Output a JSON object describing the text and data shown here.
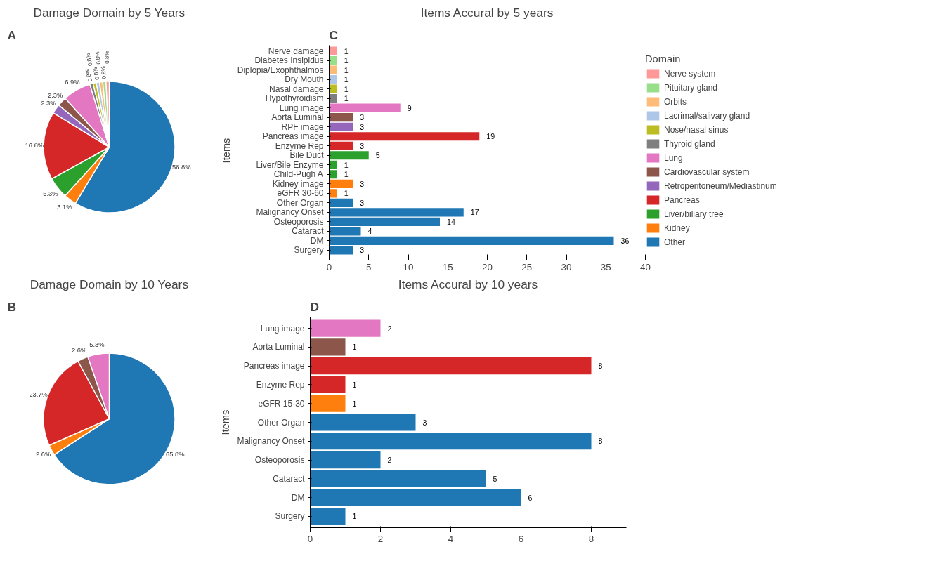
{
  "chart_data": [
    {
      "type": "pie",
      "title": "Damage Domain by 5 Years",
      "annotations": [
        "A"
      ],
      "categories": [
        null,
        null,
        null,
        null,
        null,
        null,
        null,
        null,
        null,
        null,
        null,
        null,
        null
      ],
      "values": [
        58.8,
        3.1,
        5.3,
        16.8,
        2.3,
        2.3,
        6.9,
        0.8,
        0.8,
        0.8,
        0.8,
        0.8,
        0.8
      ],
      "value_labels": [
        "58.8%",
        "3.1%",
        "5.3%",
        "16.8%",
        "2.3%",
        "2.3%",
        "6.9%",
        "0.8%",
        "0.8%",
        "0.8%",
        "0.8%",
        "0.8%",
        "0.8%"
      ],
      "colors": [
        "#1f77b4",
        "#ff7f0e",
        "#2ca02c",
        "#d62728",
        "#9467bd",
        "#8c564b",
        "#e377c2",
        "#7f7f7f",
        "#bcbd22",
        "#aec7e8",
        "#ffbb78",
        "#98df8a",
        "#ff9896"
      ]
    },
    {
      "type": "bar",
      "orientation": "horizontal",
      "stacked": true,
      "title": "Items Accural by 5 years",
      "annotations": [
        "C"
      ],
      "ylabel": "Items",
      "legend_title": "Domain",
      "legend": "right",
      "data_labels": true,
      "categories": [
        "Nerve damage",
        "Diabetes Insipidus",
        "Diplopia/Exophthalmos",
        "Dry Mouth",
        "Nasal damage",
        "Hypothyroidism",
        "Lung image",
        "Aorta Luminal",
        "RPF image",
        "Pancreas image",
        "Enzyme Rep",
        "Bile Duct",
        "Liver/Bile Enzyme",
        "Child-Pugh A",
        "Kidney image",
        "eGFR 30-60",
        "Other Organ",
        "Malignancy Onset",
        "Osteoporosis",
        "Cataract",
        "DM",
        "Surgery"
      ],
      "xlim": [
        0,
        40
      ],
      "xticks": [
        0,
        5,
        10,
        15,
        20,
        25,
        30,
        35,
        40
      ],
      "series": [
        {
          "name": "Nerve system",
          "color": "#ff9896",
          "values": [
            1,
            null,
            null,
            null,
            null,
            null,
            null,
            null,
            null,
            null,
            null,
            null,
            null,
            null,
            null,
            null,
            null,
            null,
            null,
            null,
            null,
            null
          ]
        },
        {
          "name": "Pituitary gland",
          "color": "#98df8a",
          "values": [
            null,
            1,
            null,
            null,
            null,
            null,
            null,
            null,
            null,
            null,
            null,
            null,
            null,
            null,
            null,
            null,
            null,
            null,
            null,
            null,
            null,
            null
          ]
        },
        {
          "name": "Orbits",
          "color": "#ffbb78",
          "values": [
            null,
            null,
            1,
            null,
            null,
            null,
            null,
            null,
            null,
            null,
            null,
            null,
            null,
            null,
            null,
            null,
            null,
            null,
            null,
            null,
            null,
            null
          ]
        },
        {
          "name": "Lacrimal/salivary gland",
          "color": "#aec7e8",
          "values": [
            null,
            null,
            null,
            1,
            null,
            null,
            null,
            null,
            null,
            null,
            null,
            null,
            null,
            null,
            null,
            null,
            null,
            null,
            null,
            null,
            null,
            null
          ]
        },
        {
          "name": "Nose/nasal sinus",
          "color": "#bcbd22",
          "values": [
            null,
            null,
            null,
            null,
            1,
            null,
            null,
            null,
            null,
            null,
            null,
            null,
            null,
            null,
            null,
            null,
            null,
            null,
            null,
            null,
            null,
            null
          ]
        },
        {
          "name": "Thyroid gland",
          "color": "#7f7f7f",
          "values": [
            null,
            null,
            null,
            null,
            null,
            1,
            null,
            null,
            null,
            null,
            null,
            null,
            null,
            null,
            null,
            null,
            null,
            null,
            null,
            null,
            null,
            null
          ]
        },
        {
          "name": "Lung",
          "color": "#e377c2",
          "values": [
            null,
            null,
            null,
            null,
            null,
            null,
            9,
            null,
            null,
            null,
            null,
            null,
            null,
            null,
            null,
            null,
            null,
            null,
            null,
            null,
            null,
            null
          ]
        },
        {
          "name": "Cardiovascular system",
          "color": "#8c564b",
          "values": [
            null,
            null,
            null,
            null,
            null,
            null,
            null,
            3,
            null,
            null,
            null,
            null,
            null,
            null,
            null,
            null,
            null,
            null,
            null,
            null,
            null,
            null
          ]
        },
        {
          "name": "Retroperitoneum/Mediastinum",
          "color": "#9467bd",
          "values": [
            null,
            null,
            null,
            null,
            null,
            null,
            null,
            null,
            3,
            null,
            null,
            null,
            null,
            null,
            null,
            null,
            null,
            null,
            null,
            null,
            null,
            null
          ]
        },
        {
          "name": "Pancreas",
          "color": "#d62728",
          "values": [
            null,
            null,
            null,
            null,
            null,
            null,
            null,
            null,
            null,
            19,
            3,
            null,
            null,
            null,
            null,
            null,
            null,
            null,
            null,
            null,
            null,
            null
          ]
        },
        {
          "name": "Liver/biliary tree",
          "color": "#2ca02c",
          "values": [
            null,
            null,
            null,
            null,
            null,
            null,
            null,
            null,
            null,
            null,
            null,
            5,
            1,
            1,
            null,
            null,
            null,
            null,
            null,
            null,
            null,
            null
          ]
        },
        {
          "name": "Kidney",
          "color": "#ff7f0e",
          "values": [
            null,
            null,
            null,
            null,
            null,
            null,
            null,
            null,
            null,
            null,
            null,
            null,
            null,
            null,
            3,
            1,
            null,
            null,
            null,
            null,
            null,
            null
          ]
        },
        {
          "name": "Other",
          "color": "#1f77b4",
          "values": [
            null,
            null,
            null,
            null,
            null,
            null,
            null,
            null,
            null,
            null,
            null,
            null,
            null,
            null,
            null,
            null,
            3,
            17,
            14,
            4,
            36,
            3
          ]
        }
      ]
    },
    {
      "type": "pie",
      "title": "Damage Domain by 10 Years",
      "annotations": [
        "B"
      ],
      "categories": [
        null,
        null,
        null,
        null,
        null
      ],
      "values": [
        65.8,
        2.6,
        23.7,
        2.6,
        5.3
      ],
      "value_labels": [
        "65.8%",
        "2.6%",
        "23.7%",
        "2.6%",
        "5.3%"
      ],
      "colors": [
        "#1f77b4",
        "#ff7f0e",
        "#d62728",
        "#8c564b",
        "#e377c2"
      ]
    },
    {
      "type": "bar",
      "orientation": "horizontal",
      "title": "Items Accural by 10 years",
      "annotations": [
        "D"
      ],
      "ylabel": "Items",
      "data_labels": true,
      "categories": [
        "Lung image",
        "Aorta Luminal",
        "Pancreas image",
        "Enzyme Rep",
        "eGFR 15-30",
        "Other Organ",
        "Malignancy Onset",
        "Osteoporosis",
        "Cataract",
        "DM",
        "Surgery"
      ],
      "xlim": [
        0,
        9
      ],
      "xticks": [
        0,
        2,
        4,
        6,
        8
      ],
      "values": [
        2,
        1,
        8,
        1,
        1,
        3,
        8,
        2,
        5,
        6,
        1
      ],
      "colors": [
        "#e377c2",
        "#8c564b",
        "#d62728",
        "#d62728",
        "#ff7f0e",
        "#1f77b4",
        "#1f77b4",
        "#1f77b4",
        "#1f77b4",
        "#1f77b4",
        "#1f77b4"
      ]
    }
  ]
}
